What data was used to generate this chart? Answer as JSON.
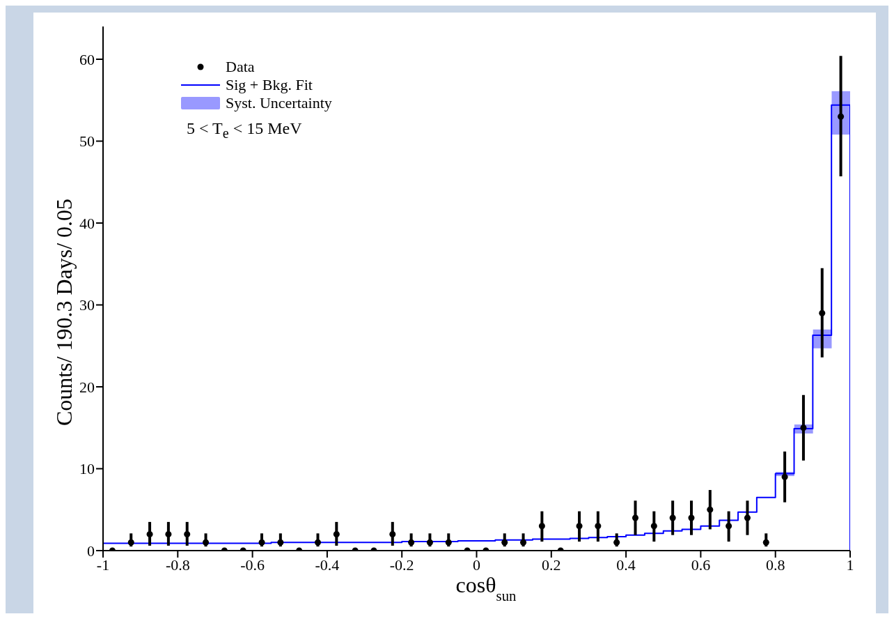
{
  "chart_data": {
    "type": "scatter",
    "xlabel": "cosθ$_{sun}$",
    "ylabel": "Counts/ 190.3 Days/ 0.05",
    "annotations": [
      "5 < T$_{e}$ < 15 MeV"
    ],
    "xlim": [
      -1,
      1
    ],
    "xticks": [
      -1,
      -0.8,
      -0.6,
      -0.4,
      -0.2,
      0,
      0.2,
      0.4,
      0.6,
      0.8,
      1
    ],
    "ylim": [
      0,
      64
    ],
    "yticks": [
      0,
      10,
      20,
      30,
      40,
      50,
      60
    ],
    "bins": [
      -1,
      -0.95,
      -0.9,
      -0.85,
      -0.8,
      -0.75,
      -0.7,
      -0.65,
      -0.6,
      -0.55,
      -0.5,
      -0.45,
      -0.4,
      -0.35,
      -0.3,
      -0.25,
      -0.2,
      -0.15,
      -0.1,
      -0.05,
      0,
      0.05,
      0.1,
      0.15,
      0.2,
      0.25,
      0.3,
      0.35,
      0.4,
      0.45,
      0.5,
      0.55,
      0.6,
      0.65,
      0.7,
      0.75,
      0.8,
      0.85,
      0.9,
      0.95,
      1
    ],
    "legend": "top left",
    "marker": "circle",
    "line_style": "solid",
    "grid": false,
    "series": [
      {
        "name": "Data",
        "color": "#000000",
        "x": [
          -0.975,
          -0.925,
          -0.875,
          -0.825,
          -0.775,
          -0.725,
          -0.675,
          -0.625,
          -0.575,
          -0.525,
          -0.475,
          -0.425,
          -0.375,
          -0.325,
          -0.275,
          -0.225,
          -0.175,
          -0.125,
          -0.075,
          -0.025,
          0.025,
          0.075,
          0.125,
          0.175,
          0.225,
          0.275,
          0.325,
          0.375,
          0.425,
          0.475,
          0.525,
          0.575,
          0.625,
          0.675,
          0.725,
          0.775,
          0.825,
          0.875,
          0.925,
          0.975
        ],
        "values": [
          0,
          1,
          2,
          2,
          2,
          1,
          0,
          0,
          1,
          1,
          0,
          1,
          2,
          0,
          0,
          2,
          1,
          1,
          1,
          0,
          0,
          1,
          1,
          3,
          0,
          3,
          3,
          1,
          4,
          3,
          4,
          4,
          5,
          3,
          4,
          1,
          9,
          15,
          29,
          53
        ],
        "errors": [
          null,
          [
            0.5,
            2.1
          ],
          [
            0.6,
            3.5
          ],
          [
            0.6,
            3.5
          ],
          [
            0.6,
            3.5
          ],
          [
            0.5,
            2.1
          ],
          null,
          null,
          [
            0.5,
            2.1
          ],
          [
            0.5,
            2.1
          ],
          null,
          [
            0.5,
            2.1
          ],
          [
            0.6,
            3.5
          ],
          null,
          null,
          [
            0.6,
            3.5
          ],
          [
            0.5,
            2.1
          ],
          [
            0.5,
            2.1
          ],
          [
            0.5,
            2.1
          ],
          null,
          null,
          [
            0.5,
            2.1
          ],
          [
            0.5,
            2.1
          ],
          [
            1.1,
            4.8
          ],
          null,
          [
            1.1,
            4.8
          ],
          [
            1.1,
            4.8
          ],
          [
            0.5,
            2.1
          ],
          [
            1.9,
            6.1
          ],
          [
            1.1,
            4.8
          ],
          [
            1.9,
            6.1
          ],
          [
            1.9,
            6.1
          ],
          [
            2.6,
            7.4
          ],
          [
            1.1,
            4.8
          ],
          [
            1.9,
            6.1
          ],
          [
            0.5,
            2.1
          ],
          [
            5.9,
            12.1
          ],
          [
            11,
            19
          ],
          [
            23.6,
            34.5
          ],
          [
            45.7,
            60.4
          ]
        ]
      },
      {
        "name": "Sig + Bkg. Fit",
        "type": "histogram",
        "color": "#0000ff",
        "values": [
          0.9,
          0.9,
          0.9,
          0.9,
          0.9,
          0.9,
          0.9,
          0.9,
          0.9,
          1.0,
          1.0,
          1.0,
          1.0,
          1.0,
          1.0,
          1.0,
          1.1,
          1.1,
          1.1,
          1.2,
          1.2,
          1.3,
          1.3,
          1.4,
          1.4,
          1.5,
          1.6,
          1.7,
          1.9,
          2.1,
          2.4,
          2.6,
          3.0,
          3.7,
          4.7,
          6.5,
          9.4,
          14.9,
          26.3,
          54.4
        ]
      },
      {
        "name": "Syst. Uncertainty",
        "type": "bar",
        "color": "#9999ff",
        "x": [
          0.825,
          0.875,
          0.925,
          0.975
        ],
        "base": [
          9.1,
          14.3,
          24.7,
          50.8
        ],
        "values": [
          0.5,
          1.1,
          2.3,
          5.3
        ]
      }
    ]
  }
}
